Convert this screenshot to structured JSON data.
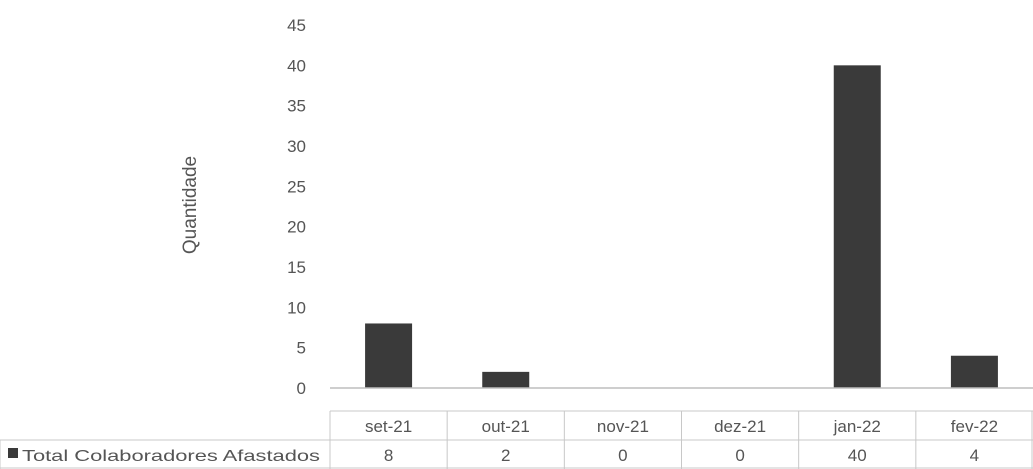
{
  "chart_data": {
    "type": "bar",
    "ylabel": "Quantidade",
    "ylim": [
      0,
      45
    ],
    "yticks": [
      "0",
      "5",
      "10",
      "15",
      "20",
      "25",
      "30",
      "35",
      "40",
      "45"
    ],
    "categories": [
      "set-21",
      "out-21",
      "nov-21",
      "dez-21",
      "jan-22",
      "fev-22"
    ],
    "series": [
      {
        "name": "Total Colaboradores Afastados",
        "values": [
          8,
          2,
          0,
          0,
          40,
          4
        ],
        "labels": [
          "8",
          "2",
          "0",
          "0",
          "40",
          "4"
        ]
      }
    ],
    "grid": false,
    "legend": "data-table-left",
    "colors": {
      "bar": "#3a3a3a",
      "axis": "#bdbdbd",
      "text": "#555555"
    }
  }
}
